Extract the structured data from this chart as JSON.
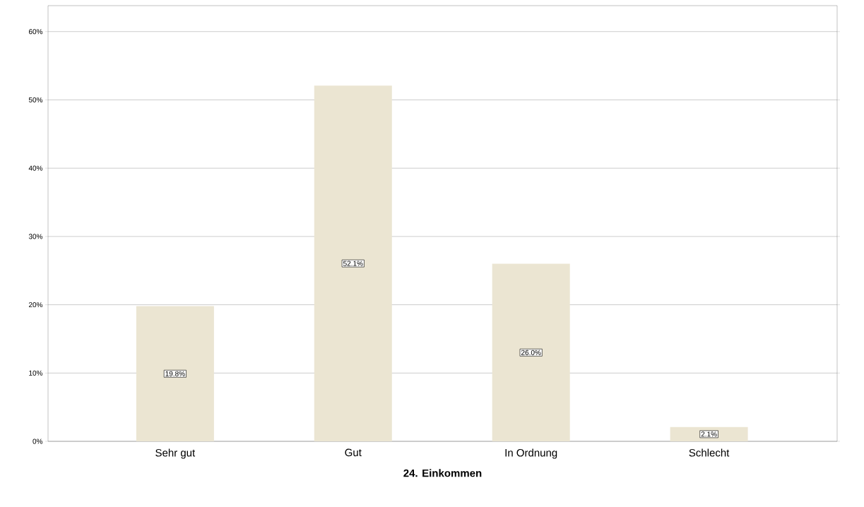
{
  "chart_data": {
    "type": "bar",
    "xlabel": "24. Einkommen",
    "categories": [
      "Sehr gut",
      "Gut",
      "In Ordnung",
      "Schlecht"
    ],
    "values": [
      19.8,
      52.1,
      26.0,
      2.1
    ],
    "value_labels": [
      "19.8%",
      "52.1%",
      "26.0%",
      "2.1%"
    ],
    "color": "#ebe5d2",
    "ylim": [
      0,
      63.8
    ],
    "yticks": [
      {
        "value": 0,
        "label": "0%"
      },
      {
        "value": 10,
        "label": "10%"
      },
      {
        "value": 20,
        "label": "20%"
      },
      {
        "value": 30,
        "label": "30%"
      },
      {
        "value": 40,
        "label": "40%"
      },
      {
        "value": 50,
        "label": "50%"
      },
      {
        "value": 60,
        "label": "60%"
      }
    ],
    "grid": "y"
  }
}
